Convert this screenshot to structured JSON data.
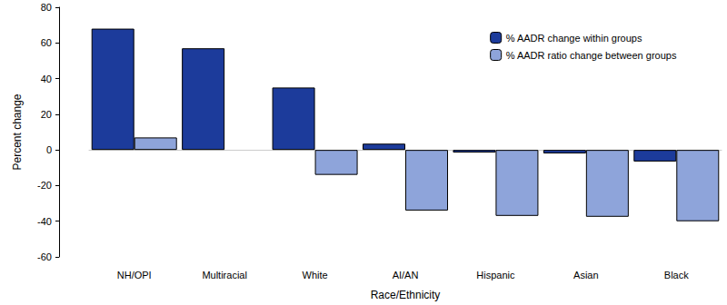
{
  "chart_data": {
    "type": "bar",
    "x_label": "Race/Ethnicity",
    "y_label": "Percent change",
    "categories": [
      "NH/OPI",
      "Multiracial",
      "White",
      "AI/AN",
      "Hispanic",
      "Asian",
      "Black"
    ],
    "series": [
      {
        "name": "% AADR change within groups",
        "color": "#1c3b9b",
        "values": [
          68,
          57,
          35,
          3.5,
          -1.5,
          -2,
          -6.5
        ]
      },
      {
        "name": "% AADR ratio change between groups",
        "color": "#8ea4da",
        "values": [
          7,
          null,
          -14,
          -34,
          -37,
          -37.5,
          -40
        ]
      }
    ],
    "ylim": [
      -60,
      80
    ],
    "yticks": [
      -60,
      -40,
      -20,
      0,
      20,
      40,
      60,
      80
    ],
    "grid": false,
    "legend": "upper right"
  }
}
